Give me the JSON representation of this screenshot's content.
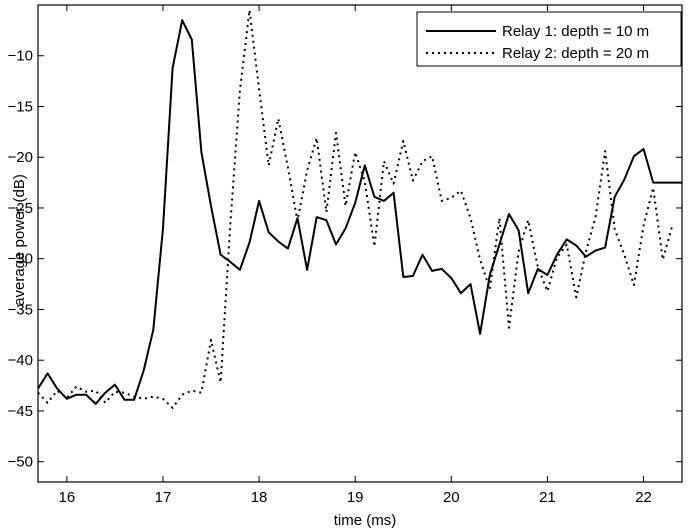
{
  "chart_data": {
    "type": "line",
    "title": "",
    "xlabel": "time (ms)",
    "ylabel": "average power (dB)",
    "xlim": [
      15.7,
      22.4
    ],
    "ylim": [
      -52,
      -5
    ],
    "xticks": [
      16,
      17,
      18,
      19,
      20,
      21,
      22
    ],
    "yticks": [
      -50,
      -45,
      -40,
      -35,
      -30,
      -25,
      -20,
      -15,
      -10
    ],
    "grid": false,
    "legend_position": "top-right",
    "series": [
      {
        "name": "Relay 1: depth = 10 m",
        "style": "solid",
        "color": "#000000",
        "x": [
          15.7,
          15.8,
          15.9,
          16.0,
          16.1,
          16.2,
          16.3,
          16.4,
          16.5,
          16.6,
          16.7,
          16.8,
          16.9,
          17.0,
          17.1,
          17.2,
          17.3,
          17.4,
          17.5,
          17.6,
          17.7,
          17.8,
          17.9,
          18.0,
          18.1,
          18.2,
          18.3,
          18.4,
          18.5,
          18.6,
          18.7,
          18.8,
          18.9,
          19.0,
          19.1,
          19.2,
          19.3,
          19.4,
          19.5,
          19.6,
          19.7,
          19.8,
          19.9,
          20.0,
          20.1,
          20.2,
          20.3,
          20.4,
          20.5,
          20.6,
          20.7,
          20.8,
          20.9,
          21.0,
          21.1,
          21.2,
          21.3,
          21.4,
          21.5,
          21.6,
          21.7,
          21.8,
          21.9,
          22.0,
          22.1,
          22.2,
          22.3,
          22.4
        ],
        "y": [
          -42.8,
          -41.3,
          -42.8,
          -43.8,
          -43.4,
          -43.4,
          -44.3,
          -43.2,
          -42.4,
          -43.9,
          -43.9,
          -41.0,
          -37.0,
          -27.0,
          -11.2,
          -6.5,
          -8.4,
          -19.5,
          -24.8,
          -29.6,
          -30.3,
          -31.1,
          -28.4,
          -24.3,
          -27.4,
          -28.3,
          -29.0,
          -26.0,
          -31.1,
          -25.9,
          -26.2,
          -28.6,
          -27.0,
          -24.5,
          -20.8,
          -23.9,
          -24.3,
          -23.5,
          -31.8,
          -31.7,
          -29.6,
          -31.2,
          -31.0,
          -31.9,
          -33.4,
          -32.5,
          -37.4,
          -31.6,
          -28.6,
          -25.6,
          -27.2,
          -33.4,
          -31.0,
          -31.6,
          -29.6,
          -28.1,
          -28.7,
          -29.8,
          -29.2,
          -28.9,
          -23.9,
          -22.2,
          -19.9,
          -19.2,
          -22.5,
          -22.5,
          -22.5,
          -22.5
        ]
      },
      {
        "name": "Relay 2: depth = 20 m",
        "style": "dotted",
        "color": "#000000",
        "x": [
          15.7,
          15.8,
          15.9,
          16.0,
          16.1,
          16.2,
          16.3,
          16.4,
          16.5,
          16.6,
          16.7,
          16.8,
          16.9,
          17.0,
          17.1,
          17.2,
          17.3,
          17.4,
          17.5,
          17.6,
          17.7,
          17.8,
          17.9,
          18.0,
          18.1,
          18.2,
          18.3,
          18.4,
          18.5,
          18.6,
          18.7,
          18.8,
          18.9,
          19.0,
          19.1,
          19.2,
          19.3,
          19.4,
          19.5,
          19.6,
          19.7,
          19.8,
          19.9,
          20.0,
          20.1,
          20.2,
          20.3,
          20.4,
          20.5,
          20.6,
          20.7,
          20.8,
          20.9,
          21.0,
          21.1,
          21.2,
          21.3,
          21.4,
          21.5,
          21.6,
          21.7,
          21.8,
          21.9,
          22.0,
          22.1,
          22.2,
          22.3
        ],
        "y": [
          -43.2,
          -44.2,
          -43.0,
          -43.7,
          -42.6,
          -43.1,
          -43.0,
          -44.2,
          -43.1,
          -43.2,
          -43.6,
          -43.8,
          -43.6,
          -43.8,
          -44.7,
          -43.4,
          -43.0,
          -43.2,
          -38.0,
          -42.2,
          -26.8,
          -13.4,
          -5.5,
          -13.3,
          -20.8,
          -16.2,
          -21.0,
          -26.3,
          -21.3,
          -18.1,
          -25.4,
          -17.6,
          -24.8,
          -19.5,
          -22.4,
          -28.8,
          -20.4,
          -22.6,
          -18.4,
          -22.3,
          -20.4,
          -19.9,
          -24.3,
          -24.0,
          -23.3,
          -26.0,
          -30.1,
          -33.0,
          -26.0,
          -36.8,
          -29.3,
          -26.2,
          -30.8,
          -33.2,
          -29.9,
          -28.6,
          -33.8,
          -29.3,
          -25.9,
          -19.4,
          -27.1,
          -29.6,
          -32.6,
          -26.7,
          -23.0,
          -30.1,
          -26.7
        ]
      }
    ]
  }
}
